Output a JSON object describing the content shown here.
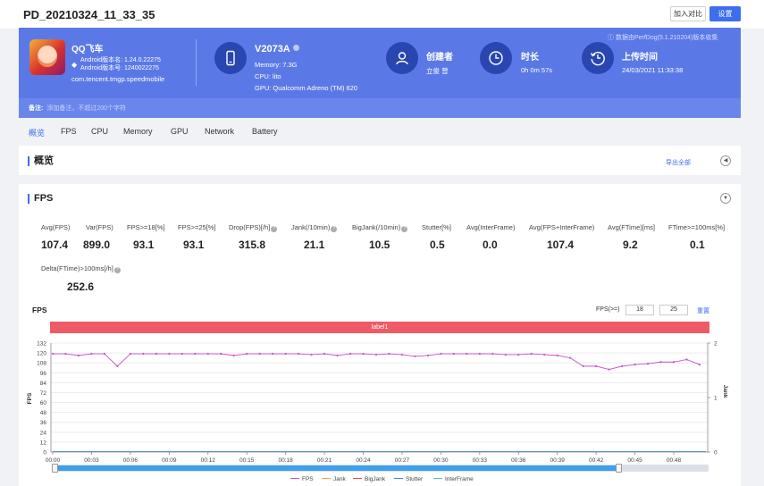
{
  "header": {
    "title": "PD_20210324_11_33_35",
    "compare_label": "加入对比",
    "settings_label": "设置"
  },
  "app": {
    "name": "QQ飞车",
    "android_version_name": "Android版本名: 1.24.0.22275",
    "android_version_code": "Android版本号: 1240022275",
    "package": "com.tencent.tmgp.speedmobile"
  },
  "device": {
    "name": "V2073A",
    "memory": "Memory: 7.3G",
    "cpu": "CPU: lito",
    "gpu": "GPU: Qualcomm Adreno (TM) 620"
  },
  "creator": {
    "label": "创建者",
    "value": "立俊 曾"
  },
  "duration": {
    "label": "时长",
    "value": "0h 0m 57s"
  },
  "upload": {
    "label": "上传时间",
    "value": "24/03/2021 11:33:38"
  },
  "credit": "数据由PerfDog(5.1.210204)版本收集",
  "note": {
    "label": "备注:",
    "placeholder": "添加备注，不超过200个字符"
  },
  "tabs": [
    "概览",
    "FPS",
    "CPU",
    "Memory",
    "GPU",
    "Network",
    "Battery"
  ],
  "overview": {
    "title": "概览",
    "export_label": "导出全部"
  },
  "fps_section": {
    "title": "FPS",
    "stats": [
      {
        "label": "Avg(FPS)",
        "value": "107.4"
      },
      {
        "label": "Var(FPS)",
        "value": "899.0"
      },
      {
        "label": "FPS>=18[%]",
        "value": "93.1"
      },
      {
        "label": "FPS>=25[%]",
        "value": "93.1"
      },
      {
        "label": "Drop(FPS)[/h]",
        "value": "315.8"
      },
      {
        "label": "Jank(/10min)",
        "value": "21.1"
      },
      {
        "label": "BigJank(/10min)",
        "value": "10.5"
      },
      {
        "label": "Stutter[%]",
        "value": "0.5"
      },
      {
        "label": "Avg(InterFrame)",
        "value": "0.0"
      },
      {
        "label": "Avg(FPS+InterFrame)",
        "value": "107.4"
      },
      {
        "label": "Avg(FTime)[ms]",
        "value": "9.2"
      },
      {
        "label": "FTime>=100ms[%]",
        "value": "0.1"
      },
      {
        "label": "Delta(FTime)>100ms[/h]",
        "value": "252.6"
      }
    ],
    "chart_title": "FPS",
    "threshold_label": "FPS(>=)",
    "threshold_1": "18",
    "threshold_2": "25",
    "reset_label": "重置",
    "label_bar": "label1"
  },
  "chart_data": {
    "type": "line",
    "ylabel": "FPS",
    "y2label": "Jank",
    "ylim": [
      0,
      132
    ],
    "yticks": [
      0,
      12,
      24,
      36,
      48,
      60,
      72,
      84,
      96,
      108,
      120,
      132
    ],
    "y2lim": [
      0,
      2
    ],
    "y2ticks": [
      0,
      1,
      2
    ],
    "xticks": [
      "00:00",
      "00:03",
      "00:06",
      "00:09",
      "00:12",
      "00:15",
      "00:18",
      "00:21",
      "00:24",
      "00:27",
      "00:30",
      "00:33",
      "00:36",
      "00:39",
      "00:42",
      "00:45",
      "00:48"
    ],
    "x_seconds": [
      0,
      1,
      2,
      3,
      4,
      5,
      6,
      7,
      8,
      9,
      10,
      11,
      12,
      13,
      14,
      15,
      16,
      17,
      18,
      19,
      20,
      21,
      22,
      23,
      24,
      25,
      26,
      27,
      28,
      29,
      30,
      31,
      32,
      33,
      34,
      35,
      36,
      37,
      38,
      39,
      40,
      41,
      42,
      43,
      44,
      45,
      46,
      47,
      48,
      49,
      50
    ],
    "series": [
      {
        "name": "FPS",
        "color": "#c353c8",
        "values": [
          119,
          119,
          117,
          119,
          119,
          104,
          119,
          119,
          119,
          119,
          119,
          119,
          119,
          119,
          117,
          119,
          119,
          119,
          119,
          119,
          118,
          119,
          117,
          119,
          119,
          118,
          119,
          118,
          116,
          117,
          119,
          119,
          119,
          119,
          119,
          118,
          118,
          119,
          118,
          117,
          114,
          104,
          104,
          100,
          104,
          106,
          107,
          109,
          109,
          112,
          106
        ]
      },
      {
        "name": "Jank",
        "color": "#f5a142",
        "values": []
      },
      {
        "name": "BigJank",
        "color": "#e34b4b",
        "values": []
      },
      {
        "name": "Stutter",
        "color": "#4a7fe0",
        "values": []
      },
      {
        "name": "InterFrame",
        "color": "#4cc3c9",
        "values": []
      }
    ]
  }
}
